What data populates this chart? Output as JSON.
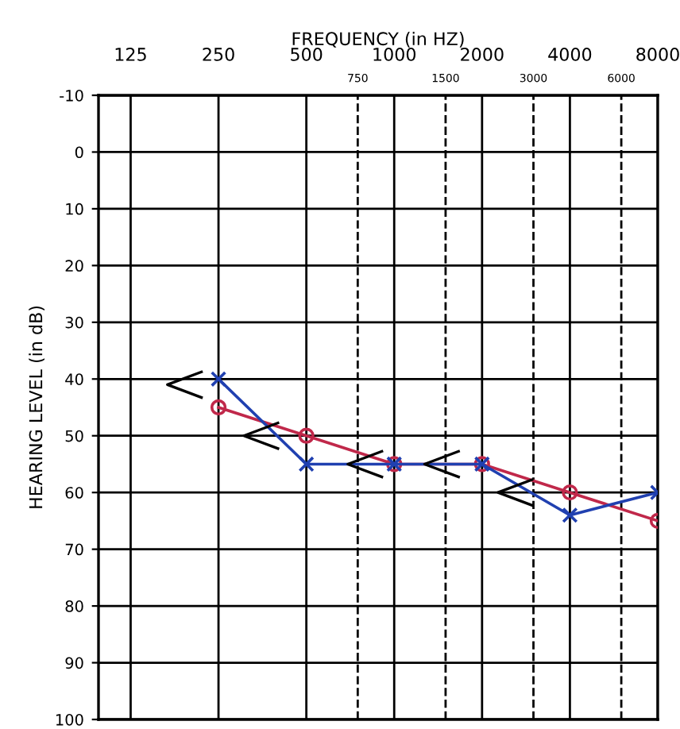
{
  "chart_data": {
    "type": "line",
    "xlabel": "FREQUENCY (in HZ)",
    "ylabel": "HEARING LEVEL (in dB)",
    "log": "x",
    "xlim": [
      97,
      8000
    ],
    "xticks": [
      125,
      250,
      500,
      1000,
      2000,
      4000,
      8000
    ],
    "ylim": [
      100,
      -10
    ],
    "yticks": [
      -10,
      0,
      10,
      20,
      30,
      40,
      50,
      60,
      70,
      80,
      90,
      100
    ],
    "grid": true,
    "series": [
      {
        "color": "#c0284a",
        "marker": "circle",
        "line_style": "solid",
        "x": [
          250,
          500,
          1000,
          2000,
          4000,
          8000
        ],
        "values": [
          45,
          50,
          55,
          55,
          60,
          65
        ]
      },
      {
        "color": "#2040b0",
        "marker": "cross",
        "line_style": "solid",
        "x": [
          250,
          500,
          1000,
          2000,
          4000,
          8000
        ],
        "values": [
          40,
          55,
          55,
          55,
          64,
          60
        ]
      },
      {
        "type": "scatter",
        "color": "#000000",
        "x": [
          192,
          351,
          797,
          1460,
          2606
        ],
        "values": [
          41,
          50,
          55,
          55,
          60
        ]
      }
    ],
    "ref_lines": [
      {
        "axis": "x",
        "value": 750,
        "label": "750",
        "line_style": "dashed",
        "color": "#000000"
      },
      {
        "axis": "x",
        "value": 1500,
        "label": "1500",
        "line_style": "dashed",
        "color": "#000000"
      },
      {
        "axis": "x",
        "value": 3000,
        "label": "3000",
        "line_style": "dashed",
        "color": "#000000"
      },
      {
        "axis": "x",
        "value": 6000,
        "label": "6000",
        "line_style": "dashed",
        "color": "#000000"
      }
    ]
  }
}
